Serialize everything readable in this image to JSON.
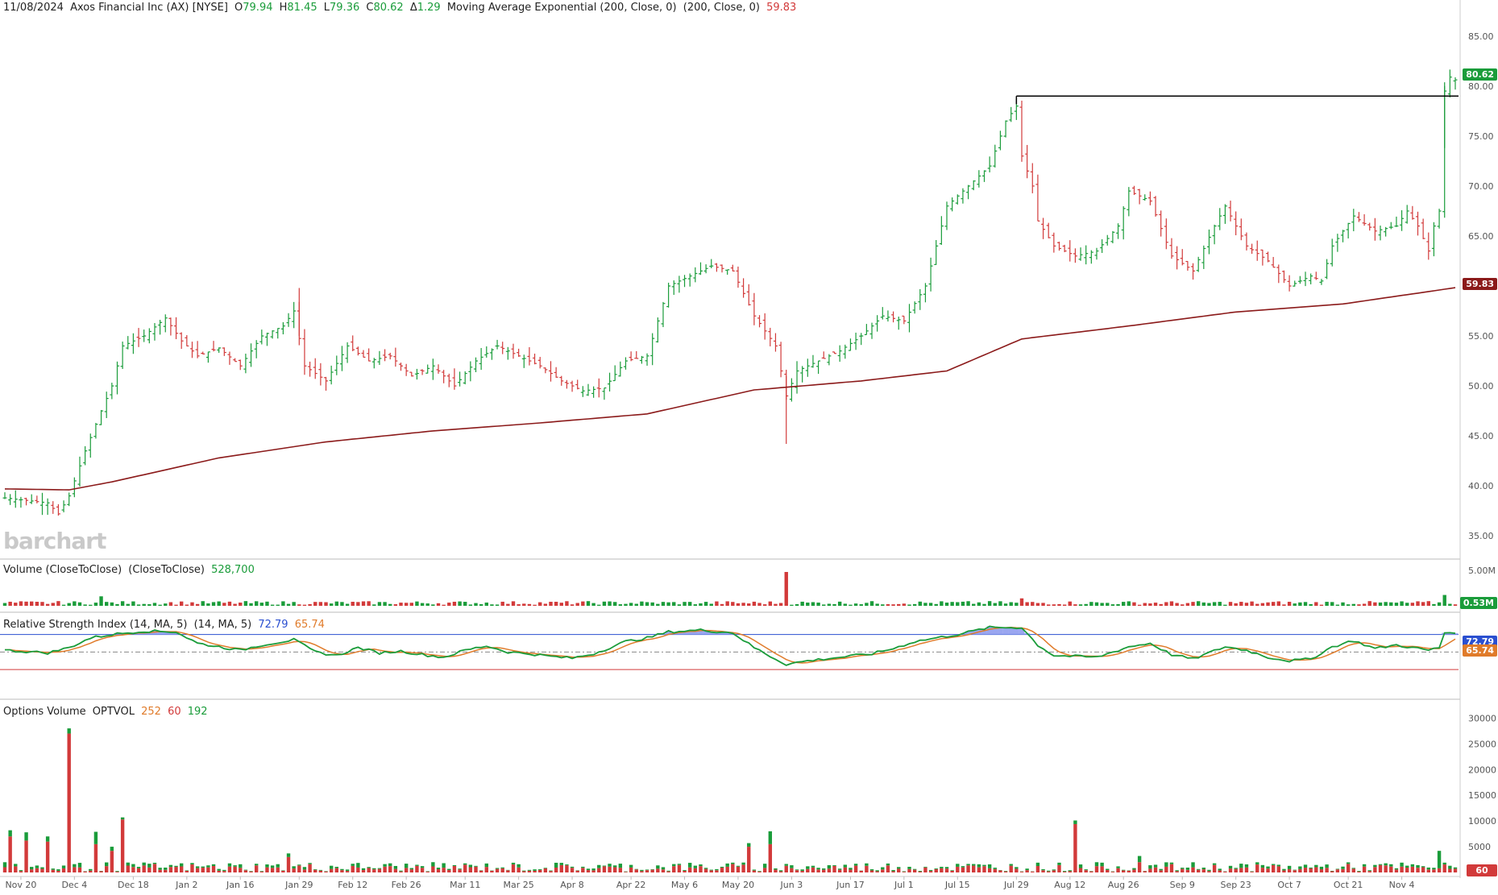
{
  "header": {
    "date": "11/08/2024",
    "symbol": "Axos Financial Inc (AX) [NYSE]",
    "open_label": "O",
    "open": "79.94",
    "high_label": "H",
    "high": "81.45",
    "low_label": "L",
    "low": "79.36",
    "close_label": "C",
    "close": "80.62",
    "change_label": "Δ",
    "change": "1.29",
    "ma_label": "Moving Average Exponential (200, Close, 0)",
    "ma_params": "(200, Close, 0)",
    "ma_value": "59.83"
  },
  "watermark": "barchart",
  "price_badge": "80.62",
  "ma_badge": "59.83",
  "volume": {
    "label": "Volume (CloseToClose)",
    "params": "(CloseToClose)",
    "value": "528,700",
    "badge": "0.53M",
    "axis_top": "5.00M"
  },
  "rsi": {
    "label": "Relative Strength Index (14, MA, 5)",
    "params": "(14, MA, 5)",
    "rsi_value": "72.79",
    "ma_value": "65.74",
    "badge_rsi": "72.79",
    "badge_ma": "65.74",
    "axis_mid": "50.00"
  },
  "options": {
    "label": "Options Volume",
    "code": "OPTVOL",
    "v1": "252",
    "v2": "60",
    "v3": "192",
    "badge": "60"
  },
  "colors": {
    "up": "#1a9c3a",
    "down": "#d23a3a",
    "ma": "#8b1a1a",
    "rsi": "#1a9c3a",
    "rsi_ma": "#e07b2a",
    "rsi_fill": "#9aa6f0",
    "resistance": "#000000"
  },
  "chart_data": [
    {
      "type": "ohlc",
      "title": "Axos Financial Inc (AX) [NYSE]",
      "y_ticks": [
        35,
        40,
        45,
        50,
        55,
        60,
        65,
        70,
        75,
        80,
        85
      ],
      "ylim": [
        33,
        87
      ],
      "x_tick_labels": [
        "Nov 20",
        "Dec 4",
        "Dec 18",
        "Jan 2",
        "Jan 16",
        "Jan 29",
        "Feb 12",
        "Feb 26",
        "Mar 11",
        "Mar 25",
        "Apr 8",
        "Apr 22",
        "May 6",
        "May 20",
        "Jun 3",
        "Jun 17",
        "Jul 1",
        "Jul 15",
        "Jul 29",
        "Aug 12",
        "Aug 26",
        "Sep 9",
        "Sep 23",
        "Oct 7",
        "Oct 21",
        "Nov 4"
      ],
      "close_keypoints": [
        [
          0,
          38.8
        ],
        [
          8,
          38.3
        ],
        [
          10,
          37.2
        ],
        [
          12,
          39.0
        ],
        [
          15,
          43.5
        ],
        [
          18,
          47.5
        ],
        [
          20,
          50.0
        ],
        [
          22,
          54.0
        ],
        [
          26,
          55.0
        ],
        [
          30,
          56.8
        ],
        [
          33,
          54.5
        ],
        [
          36,
          53.0
        ],
        [
          40,
          53.8
        ],
        [
          44,
          52.0
        ],
        [
          48,
          55.0
        ],
        [
          52,
          56.0
        ],
        [
          54,
          57.5
        ],
        [
          56,
          52.0
        ],
        [
          60,
          50.5
        ],
        [
          64,
          54.0
        ],
        [
          68,
          52.5
        ],
        [
          72,
          53.0
        ],
        [
          76,
          51.0
        ],
        [
          80,
          52.0
        ],
        [
          84,
          50.0
        ],
        [
          88,
          52.5
        ],
        [
          92,
          54.0
        ],
        [
          96,
          53.0
        ],
        [
          100,
          52.0
        ],
        [
          104,
          50.5
        ],
        [
          108,
          49.5
        ],
        [
          112,
          49.8
        ],
        [
          116,
          52.5
        ],
        [
          120,
          53.0
        ],
        [
          124,
          60.0
        ],
        [
          128,
          61.0
        ],
        [
          132,
          62.0
        ],
        [
          136,
          61.5
        ],
        [
          140,
          57.0
        ],
        [
          144,
          54.0
        ],
        [
          146,
          49.0
        ],
        [
          148,
          51.5
        ],
        [
          152,
          52.5
        ],
        [
          156,
          53.5
        ],
        [
          160,
          55.0
        ],
        [
          164,
          57.0
        ],
        [
          168,
          56.5
        ],
        [
          172,
          60.0
        ],
        [
          176,
          68.0
        ],
        [
          180,
          70.0
        ],
        [
          184,
          72.0
        ],
        [
          187,
          76.5
        ],
        [
          189,
          78.0
        ],
        [
          190,
          73.0
        ],
        [
          192,
          70.0
        ],
        [
          193,
          66.5
        ],
        [
          196,
          64.0
        ],
        [
          200,
          63.0
        ],
        [
          204,
          63.5
        ],
        [
          208,
          66.0
        ],
        [
          210,
          69.5
        ],
        [
          214,
          68.5
        ],
        [
          218,
          63.0
        ],
        [
          222,
          61.5
        ],
        [
          226,
          66.0
        ],
        [
          228,
          68.0
        ],
        [
          232,
          64.0
        ],
        [
          236,
          62.5
        ],
        [
          240,
          60.0
        ],
        [
          244,
          61.0
        ],
        [
          246,
          60.5
        ],
        [
          248,
          64.0
        ],
        [
          252,
          67.0
        ],
        [
          256,
          65.5
        ],
        [
          260,
          66.0
        ],
        [
          262,
          67.5
        ],
        [
          264,
          66.0
        ],
        [
          266,
          63.5
        ],
        [
          267,
          66.0
        ],
        [
          268,
          67.5
        ],
        [
          269,
          79.5
        ],
        [
          270,
          80.9
        ],
        [
          271,
          80.62
        ]
      ],
      "resistance_level": 79.0,
      "ema200_keypoints": [
        [
          0,
          39.7
        ],
        [
          12,
          39.6
        ],
        [
          20,
          40.4
        ],
        [
          40,
          42.8
        ],
        [
          60,
          44.4
        ],
        [
          80,
          45.5
        ],
        [
          100,
          46.3
        ],
        [
          120,
          47.2
        ],
        [
          140,
          49.6
        ],
        [
          160,
          50.5
        ],
        [
          176,
          51.5
        ],
        [
          190,
          54.7
        ],
        [
          210,
          56.0
        ],
        [
          230,
          57.4
        ],
        [
          250,
          58.2
        ],
        [
          271,
          59.83
        ]
      ]
    },
    {
      "type": "bar",
      "title": "Volume (CloseToClose)",
      "unit": "shares",
      "latest": 528700,
      "spikes": [
        {
          "bar": 146,
          "value": 5000000
        },
        {
          "bar": 269,
          "value": 1600000
        },
        {
          "bar": 18,
          "value": 1400000
        },
        {
          "bar": 190,
          "value": 1100000
        }
      ]
    },
    {
      "type": "line",
      "title": "Relative Strength Index (14, MA, 5)",
      "ylim": [
        0,
        100
      ],
      "levels": [
        70,
        50,
        30
      ],
      "rsi_keypoints": [
        [
          0,
          52
        ],
        [
          8,
          49
        ],
        [
          12,
          55
        ],
        [
          16,
          66
        ],
        [
          20,
          70
        ],
        [
          26,
          74
        ],
        [
          32,
          73
        ],
        [
          36,
          60
        ],
        [
          40,
          56
        ],
        [
          44,
          52
        ],
        [
          48,
          58
        ],
        [
          54,
          64
        ],
        [
          58,
          50
        ],
        [
          62,
          46
        ],
        [
          66,
          55
        ],
        [
          70,
          49
        ],
        [
          74,
          51
        ],
        [
          78,
          47
        ],
        [
          82,
          44
        ],
        [
          86,
          52
        ],
        [
          90,
          57
        ],
        [
          94,
          50
        ],
        [
          98,
          48
        ],
        [
          102,
          45
        ],
        [
          106,
          43
        ],
        [
          110,
          48
        ],
        [
          116,
          62
        ],
        [
          120,
          66
        ],
        [
          124,
          73
        ],
        [
          130,
          75
        ],
        [
          136,
          72
        ],
        [
          140,
          55
        ],
        [
          144,
          42
        ],
        [
          146,
          36
        ],
        [
          150,
          40
        ],
        [
          156,
          44
        ],
        [
          162,
          48
        ],
        [
          166,
          54
        ],
        [
          170,
          62
        ],
        [
          174,
          66
        ],
        [
          178,
          70
        ],
        [
          184,
          78
        ],
        [
          190,
          78
        ],
        [
          193,
          58
        ],
        [
          196,
          46
        ],
        [
          204,
          44
        ],
        [
          210,
          56
        ],
        [
          214,
          60
        ],
        [
          218,
          47
        ],
        [
          222,
          42
        ],
        [
          228,
          56
        ],
        [
          232,
          52
        ],
        [
          236,
          44
        ],
        [
          240,
          40
        ],
        [
          244,
          42
        ],
        [
          248,
          56
        ],
        [
          252,
          63
        ],
        [
          256,
          54
        ],
        [
          260,
          58
        ],
        [
          266,
          52
        ],
        [
          268,
          55
        ],
        [
          269,
          72
        ],
        [
          271,
          72.79
        ]
      ],
      "rsi_latest": 72.79,
      "ma_latest": 65.74
    },
    {
      "type": "bar",
      "title": "Options Volume OPTVOL",
      "y_ticks": [
        0,
        5000,
        10000,
        15000,
        20000,
        25000,
        30000
      ],
      "ylim": [
        0,
        31000
      ],
      "values_shown": [
        252,
        60,
        192
      ],
      "spikes": [
        {
          "bar": 12,
          "value": 28000,
          "split": 27000
        },
        {
          "bar": 1,
          "value": 8200,
          "split": 7000
        },
        {
          "bar": 4,
          "value": 7800,
          "split": 6200
        },
        {
          "bar": 8,
          "value": 7000,
          "split": 6000
        },
        {
          "bar": 17,
          "value": 7900,
          "split": 5500
        },
        {
          "bar": 22,
          "value": 10700,
          "split": 10300
        },
        {
          "bar": 20,
          "value": 5000,
          "split": 4200
        },
        {
          "bar": 143,
          "value": 8000,
          "split": 5500
        },
        {
          "bar": 139,
          "value": 5700,
          "split": 5000
        },
        {
          "bar": 200,
          "value": 10100,
          "split": 9400
        },
        {
          "bar": 268,
          "value": 4200,
          "split": 800
        },
        {
          "bar": 212,
          "value": 3200,
          "split": 2000
        },
        {
          "bar": 53,
          "value": 3700,
          "split": 3000
        }
      ]
    }
  ]
}
